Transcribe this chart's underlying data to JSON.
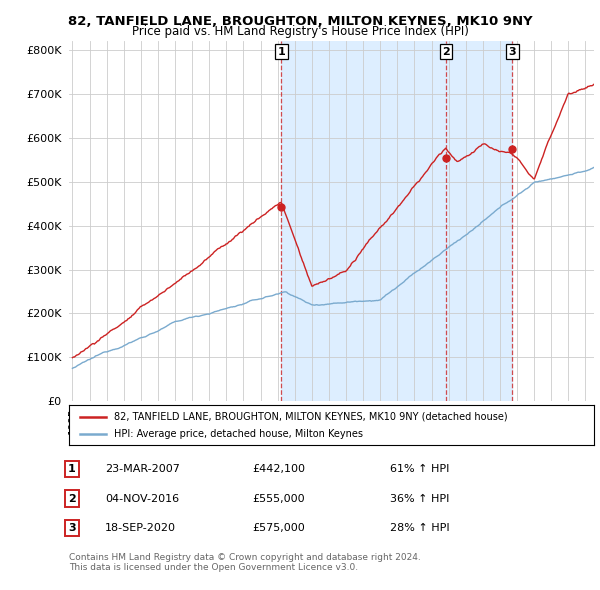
{
  "title": "82, TANFIELD LANE, BROUGHTON, MILTON KEYNES, MK10 9NY",
  "subtitle": "Price paid vs. HM Land Registry's House Price Index (HPI)",
  "hpi_label": "HPI: Average price, detached house, Milton Keynes",
  "property_label": "82, TANFIELD LANE, BROUGHTON, MILTON KEYNES, MK10 9NY (detached house)",
  "red_color": "#cc2222",
  "blue_color": "#7aaace",
  "bg_shade_color": "#ddeeff",
  "background_color": "#ffffff",
  "grid_color": "#cccccc",
  "sale_dates": [
    2007.22,
    2016.84,
    2020.72
  ],
  "sale_prices": [
    442100,
    555000,
    575000
  ],
  "sale_labels": [
    "1",
    "2",
    "3"
  ],
  "sale_info": [
    {
      "label": "1",
      "date": "23-MAR-2007",
      "price": "£442,100",
      "hpi": "61% ↑ HPI"
    },
    {
      "label": "2",
      "date": "04-NOV-2016",
      "price": "£555,000",
      "hpi": "36% ↑ HPI"
    },
    {
      "label": "3",
      "date": "18-SEP-2020",
      "price": "£575,000",
      "hpi": "28% ↑ HPI"
    }
  ],
  "footer1": "Contains HM Land Registry data © Crown copyright and database right 2024.",
  "footer2": "This data is licensed under the Open Government Licence v3.0.",
  "ylim": [
    0,
    820000
  ],
  "xlim_start": 1994.8,
  "xlim_end": 2025.5
}
